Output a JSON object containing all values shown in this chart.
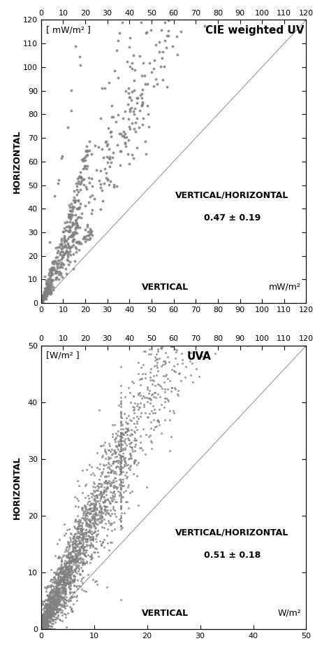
{
  "plot1": {
    "title": "CIE weighted UV",
    "ylabel_text": "HORIZONTAL",
    "xlabel_text": "VERTICAL",
    "ylabel_unit": "[ mW/m² ]",
    "xlabel_unit": "mW/m²",
    "ratio_text": "VERTICAL/HORIZONTAL",
    "ratio_value": "0.47 ± 0.19",
    "xlim": [
      0,
      120
    ],
    "ylim": [
      0,
      120
    ],
    "xticks": [
      0,
      10,
      20,
      30,
      40,
      50,
      60,
      70,
      80,
      90,
      100,
      110,
      120
    ],
    "yticks": [
      0,
      10,
      20,
      30,
      40,
      50,
      60,
      70,
      80,
      90,
      100,
      110,
      120
    ],
    "dot_color": "#808080",
    "dot_size": 8,
    "ratio": 0.47,
    "n_points": 800,
    "seed": 42
  },
  "plot2": {
    "title": "UVA",
    "ylabel_text": "HORIZONTAL",
    "xlabel_text": "VERTICAL",
    "ylabel_unit": "[W/m² ]",
    "xlabel_unit": "W/m²",
    "ratio_text": "VERTICAL/HORIZONTAL",
    "ratio_value": "0.51 ± 0.18",
    "xlim": [
      0,
      50
    ],
    "ylim": [
      0,
      50
    ],
    "xticks": [
      0,
      10,
      20,
      30,
      40,
      50
    ],
    "yticks": [
      0,
      10,
      20,
      30,
      40,
      50
    ],
    "dot_color": "#808080",
    "dot_size": 5,
    "ratio": 0.51,
    "n_points": 2000,
    "seed": 123
  },
  "background_color": "#ffffff",
  "line_color": "#999999",
  "figsize": [
    4.52,
    9.46
  ],
  "dpi": 100
}
